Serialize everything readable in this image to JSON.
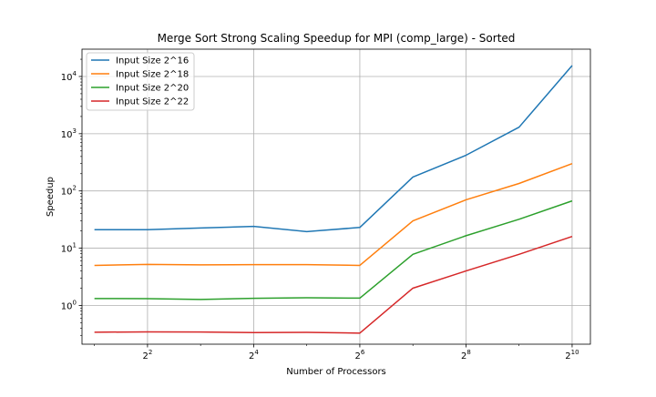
{
  "chart_data": {
    "type": "line",
    "title": "Merge Sort Strong Scaling Speedup for MPI (comp_large) - Sorted",
    "xlabel": "Number of Processors",
    "ylabel": "Speedup",
    "xscale": "log2",
    "yscale": "log10",
    "x": [
      2,
      4,
      8,
      16,
      32,
      64,
      128,
      256,
      512,
      1024
    ],
    "xlim": [
      1.7,
      1300
    ],
    "ylim": [
      0.21,
      30000
    ],
    "x_ticks": [
      {
        "base": "2",
        "exp": "2",
        "value": 4
      },
      {
        "base": "2",
        "exp": "4",
        "value": 16
      },
      {
        "base": "2",
        "exp": "6",
        "value": 64
      },
      {
        "base": "2",
        "exp": "8",
        "value": 256
      },
      {
        "base": "2",
        "exp": "10",
        "value": 1024
      }
    ],
    "y_ticks": [
      {
        "base": "10",
        "exp": "0",
        "value": 1
      },
      {
        "base": "10",
        "exp": "1",
        "value": 10
      },
      {
        "base": "10",
        "exp": "2",
        "value": 100
      },
      {
        "base": "10",
        "exp": "3",
        "value": 1000
      },
      {
        "base": "10",
        "exp": "4",
        "value": 10000
      }
    ],
    "grid": true,
    "legend_position": "top-left",
    "series": [
      {
        "name": "Input Size 2^16",
        "color": "#1f77b4",
        "values": [
          21,
          21,
          22.5,
          24,
          19.5,
          23,
          175,
          420,
          1300,
          15500
        ]
      },
      {
        "name": "Input Size 2^18",
        "color": "#ff7f0e",
        "values": [
          5.0,
          5.2,
          5.1,
          5.15,
          5.15,
          5.0,
          30,
          70,
          135,
          300
        ]
      },
      {
        "name": "Input Size 2^20",
        "color": "#2ca02c",
        "values": [
          1.32,
          1.31,
          1.27,
          1.33,
          1.36,
          1.34,
          7.8,
          16.5,
          32,
          67
        ]
      },
      {
        "name": "Input Size 2^22",
        "color": "#d62728",
        "values": [
          0.34,
          0.345,
          0.343,
          0.335,
          0.338,
          0.328,
          2.0,
          4.0,
          7.8,
          16
        ]
      }
    ]
  }
}
